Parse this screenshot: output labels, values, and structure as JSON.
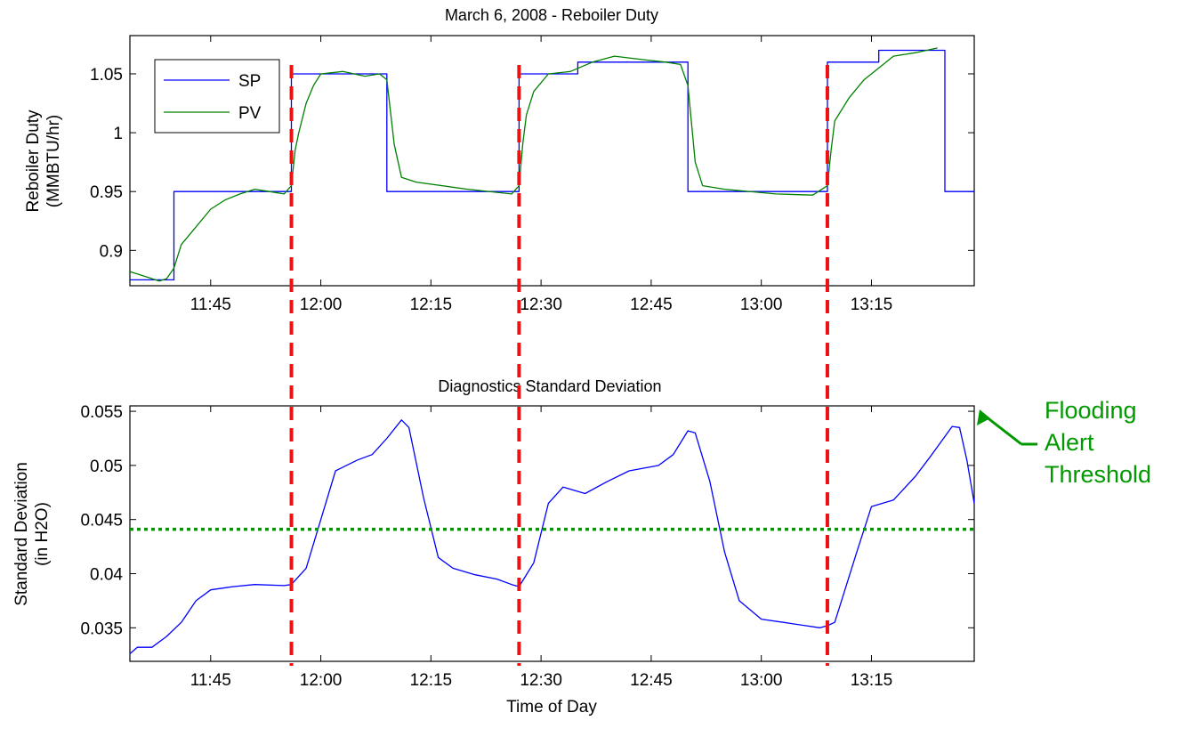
{
  "chart_data": [
    {
      "type": "line",
      "title": "March 6, 2008 - Reboiler Duty",
      "ylabel_lines": [
        "Reboiler Duty",
        "(MMBTU/hr)"
      ],
      "xlabel": "",
      "x_domain": [
        "11:34",
        "13:29"
      ],
      "ylim": [
        0.87,
        1.0825
      ],
      "xticks": [
        "11:45",
        "12:00",
        "12:15",
        "12:30",
        "12:45",
        "13:00",
        "13:15"
      ],
      "yticks": [
        "0.9",
        "0.95",
        "1",
        "1.05"
      ],
      "legend_position": "top-left",
      "series": [
        {
          "name": "SP",
          "color": "#0000ff",
          "step": true,
          "points": [
            [
              "11:34",
              0.875
            ],
            [
              "11:40",
              0.875
            ],
            [
              "11:40",
              0.95
            ],
            [
              "11:56",
              0.95
            ],
            [
              "11:56",
              1.05
            ],
            [
              "12:09",
              1.05
            ],
            [
              "12:09",
              0.95
            ],
            [
              "12:27",
              0.95
            ],
            [
              "12:27",
              1.05
            ],
            [
              "12:35",
              1.05
            ],
            [
              "12:35",
              1.06
            ],
            [
              "12:50",
              1.06
            ],
            [
              "12:50",
              0.95
            ],
            [
              "13:09",
              0.95
            ],
            [
              "13:09",
              1.06
            ],
            [
              "13:16",
              1.06
            ],
            [
              "13:16",
              1.07
            ],
            [
              "13:25",
              1.07
            ],
            [
              "13:25",
              0.95
            ],
            [
              "13:29",
              0.95
            ]
          ]
        },
        {
          "name": "PV",
          "color": "#008000",
          "points": [
            [
              "11:34",
              0.882
            ],
            [
              "11:36",
              0.878
            ],
            [
              "11:38",
              0.874
            ],
            [
              "11:39",
              0.876
            ],
            [
              "11:40",
              0.885
            ],
            [
              "11:41",
              0.905
            ],
            [
              "11:43",
              0.92
            ],
            [
              "11:45",
              0.935
            ],
            [
              "11:47",
              0.943
            ],
            [
              "11:49",
              0.948
            ],
            [
              "11:51",
              0.952
            ],
            [
              "11:53",
              0.95
            ],
            [
              "11:55",
              0.948
            ],
            [
              "11:56",
              0.955
            ],
            [
              "11:56.5",
              0.985
            ],
            [
              "11:57",
              1.0
            ],
            [
              "11:58",
              1.025
            ],
            [
              "11:59",
              1.04
            ],
            [
              "12:00",
              1.05
            ],
            [
              "12:03",
              1.052
            ],
            [
              "12:06",
              1.048
            ],
            [
              "12:08",
              1.05
            ],
            [
              "12:09",
              1.045
            ],
            [
              "12:10",
              0.99
            ],
            [
              "12:11",
              0.962
            ],
            [
              "12:13",
              0.958
            ],
            [
              "12:20",
              0.952
            ],
            [
              "12:26",
              0.948
            ],
            [
              "12:27",
              0.955
            ],
            [
              "12:27.5",
              0.99
            ],
            [
              "12:28",
              1.015
            ],
            [
              "12:29",
              1.035
            ],
            [
              "12:31",
              1.05
            ],
            [
              "12:34",
              1.052
            ],
            [
              "12:37",
              1.06
            ],
            [
              "12:40",
              1.065
            ],
            [
              "12:44",
              1.062
            ],
            [
              "12:47",
              1.06
            ],
            [
              "12:49",
              1.058
            ],
            [
              "12:50",
              1.04
            ],
            [
              "12:51",
              0.975
            ],
            [
              "12:52",
              0.955
            ],
            [
              "12:55",
              0.952
            ],
            [
              "13:02",
              0.948
            ],
            [
              "13:07",
              0.947
            ],
            [
              "13:09",
              0.955
            ],
            [
              "13:09.5",
              0.985
            ],
            [
              "13:10",
              1.01
            ],
            [
              "13:12",
              1.03
            ],
            [
              "13:14",
              1.045
            ],
            [
              "13:16",
              1.055
            ],
            [
              "13:18",
              1.065
            ],
            [
              "13:21",
              1.068
            ],
            [
              "13:24",
              1.072
            ]
          ]
        }
      ],
      "marker_lines": [
        "11:56",
        "12:27",
        "13:09"
      ]
    },
    {
      "type": "line",
      "title": "Diagnostics Standard Deviation",
      "ylabel_lines": [
        "Standard Deviation",
        "(in H2O)"
      ],
      "xlabel": "Time of Day",
      "x_domain": [
        "11:34",
        "13:29"
      ],
      "ylim": [
        0.0319,
        0.0555
      ],
      "xticks": [
        "11:45",
        "12:00",
        "12:15",
        "12:30",
        "12:45",
        "13:00",
        "13:15"
      ],
      "yticks": [
        "0.035",
        "0.04",
        "0.045",
        "0.05",
        "0.055"
      ],
      "series": [
        {
          "color": "#0000ff",
          "points": [
            [
              "11:34",
              0.0326
            ],
            [
              "11:35",
              0.0332
            ],
            [
              "11:37",
              0.0332
            ],
            [
              "11:39",
              0.0342
            ],
            [
              "11:41",
              0.0355
            ],
            [
              "11:43",
              0.0375
            ],
            [
              "11:45",
              0.0385
            ],
            [
              "11:48",
              0.0388
            ],
            [
              "11:51",
              0.039
            ],
            [
              "11:55",
              0.0389
            ],
            [
              "11:56",
              0.039
            ],
            [
              "11:58",
              0.0405
            ],
            [
              "12:00",
              0.045
            ],
            [
              "12:02",
              0.0495
            ],
            [
              "12:05",
              0.0505
            ],
            [
              "12:07",
              0.051
            ],
            [
              "12:09",
              0.0525
            ],
            [
              "12:11",
              0.0542
            ],
            [
              "12:12",
              0.0535
            ],
            [
              "12:14",
              0.047
            ],
            [
              "12:16",
              0.0415
            ],
            [
              "12:18",
              0.0405
            ],
            [
              "12:21",
              0.0399
            ],
            [
              "12:24",
              0.0395
            ],
            [
              "12:26",
              0.039
            ],
            [
              "12:27",
              0.0388
            ],
            [
              "12:29",
              0.041
            ],
            [
              "12:31",
              0.0465
            ],
            [
              "12:33",
              0.048
            ],
            [
              "12:36",
              0.0474
            ],
            [
              "12:39",
              0.0485
            ],
            [
              "12:42",
              0.0495
            ],
            [
              "12:46",
              0.05
            ],
            [
              "12:48",
              0.051
            ],
            [
              "12:50",
              0.0532
            ],
            [
              "12:51",
              0.053
            ],
            [
              "12:53",
              0.0485
            ],
            [
              "12:55",
              0.042
            ],
            [
              "12:57",
              0.0375
            ],
            [
              "13:00",
              0.0358
            ],
            [
              "13:03",
              0.0355
            ],
            [
              "13:06",
              0.0352
            ],
            [
              "13:08",
              0.035
            ],
            [
              "13:09",
              0.0352
            ],
            [
              "13:10",
              0.0355
            ],
            [
              "13:13",
              0.042
            ],
            [
              "13:15",
              0.0462
            ],
            [
              "13:18",
              0.0468
            ],
            [
              "13:21",
              0.049
            ],
            [
              "13:23",
              0.0508
            ],
            [
              "13:26",
              0.0536
            ],
            [
              "13:27",
              0.0535
            ],
            [
              "13:28",
              0.0505
            ],
            [
              "13:29",
              0.0465
            ]
          ]
        }
      ],
      "threshold": {
        "value": 0.0441,
        "color": "#009900"
      },
      "marker_lines": [
        "11:56",
        "12:27",
        "13:09"
      ],
      "annotation_lines": [
        "Flooding",
        "Alert",
        "Threshold"
      ]
    }
  ]
}
